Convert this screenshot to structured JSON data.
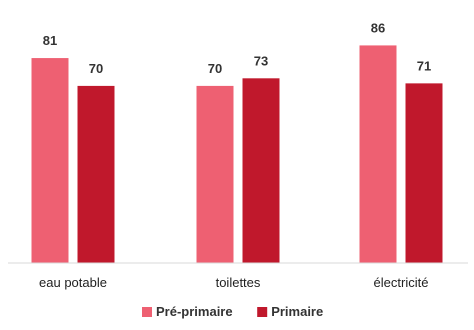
{
  "chart_data": {
    "type": "bar",
    "categories": [
      "eau potable",
      "toilettes",
      "électricité"
    ],
    "series": [
      {
        "name": "Pré-primaire",
        "color": "#ee6072",
        "values": [
          81,
          70,
          86
        ]
      },
      {
        "name": "Primaire",
        "color": "#c0182c",
        "values": [
          70,
          73,
          71
        ]
      }
    ],
    "ylim": [
      0,
      100
    ],
    "grid": false,
    "legend_position": "bottom"
  }
}
